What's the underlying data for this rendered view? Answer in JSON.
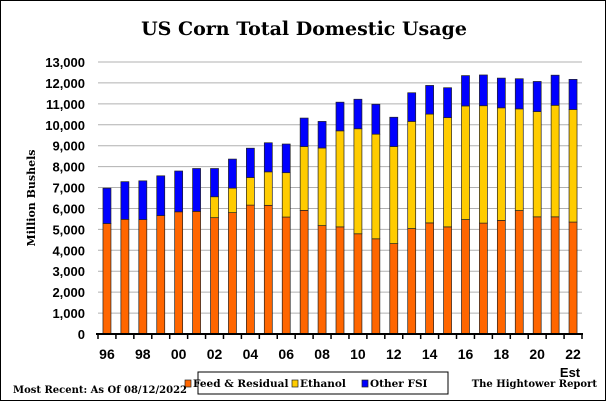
{
  "chart_data": {
    "type": "bar",
    "stacked": true,
    "title": "US Corn Total Domestic Usage",
    "ylabel": "Million Bushels",
    "xlabel": "",
    "ylim": [
      0,
      13000
    ],
    "ytick_step": 1000,
    "grid": true,
    "legend_position": "bottom",
    "categories": [
      "96",
      "97",
      "98",
      "99",
      "00",
      "01",
      "02",
      "03",
      "04",
      "05",
      "06",
      "07",
      "08",
      "09",
      "10",
      "11",
      "12",
      "13",
      "14",
      "15",
      "16",
      "17",
      "18",
      "19",
      "20",
      "21",
      "22"
    ],
    "x_tick_labels": [
      "96",
      "98",
      "00",
      "02",
      "04",
      "06",
      "08",
      "10",
      "12",
      "14",
      "16",
      "18",
      "20",
      "22"
    ],
    "x_annotation": "Est",
    "series": [
      {
        "name": "Feed & Residual",
        "color": "#ff6600",
        "values": [
          5280,
          5480,
          5470,
          5660,
          5840,
          5860,
          5560,
          5800,
          6160,
          6150,
          5590,
          5910,
          5180,
          5120,
          4790,
          4550,
          4320,
          5040,
          5310,
          5120,
          5470,
          5300,
          5430,
          5900,
          5600,
          5600,
          5350
        ]
      },
      {
        "name": "Ethanol",
        "color": "#ffcc00",
        "values": [
          0,
          0,
          0,
          0,
          0,
          0,
          1000,
          1170,
          1320,
          1600,
          2120,
          3050,
          3710,
          4590,
          5020,
          5000,
          4640,
          5120,
          5200,
          5220,
          5430,
          5610,
          5380,
          4860,
          5030,
          5330,
          5380
        ]
      },
      {
        "name": "Other FSI",
        "color": "#0000ff",
        "values": [
          1690,
          1800,
          1850,
          1900,
          1950,
          2050,
          1350,
          1390,
          1400,
          1390,
          1370,
          1360,
          1270,
          1370,
          1410,
          1430,
          1400,
          1370,
          1370,
          1430,
          1450,
          1470,
          1420,
          1440,
          1440,
          1440,
          1440
        ]
      }
    ]
  },
  "footer": {
    "left": "Most Recent: As Of 08/12/2022",
    "right": "The Hightower Report"
  }
}
